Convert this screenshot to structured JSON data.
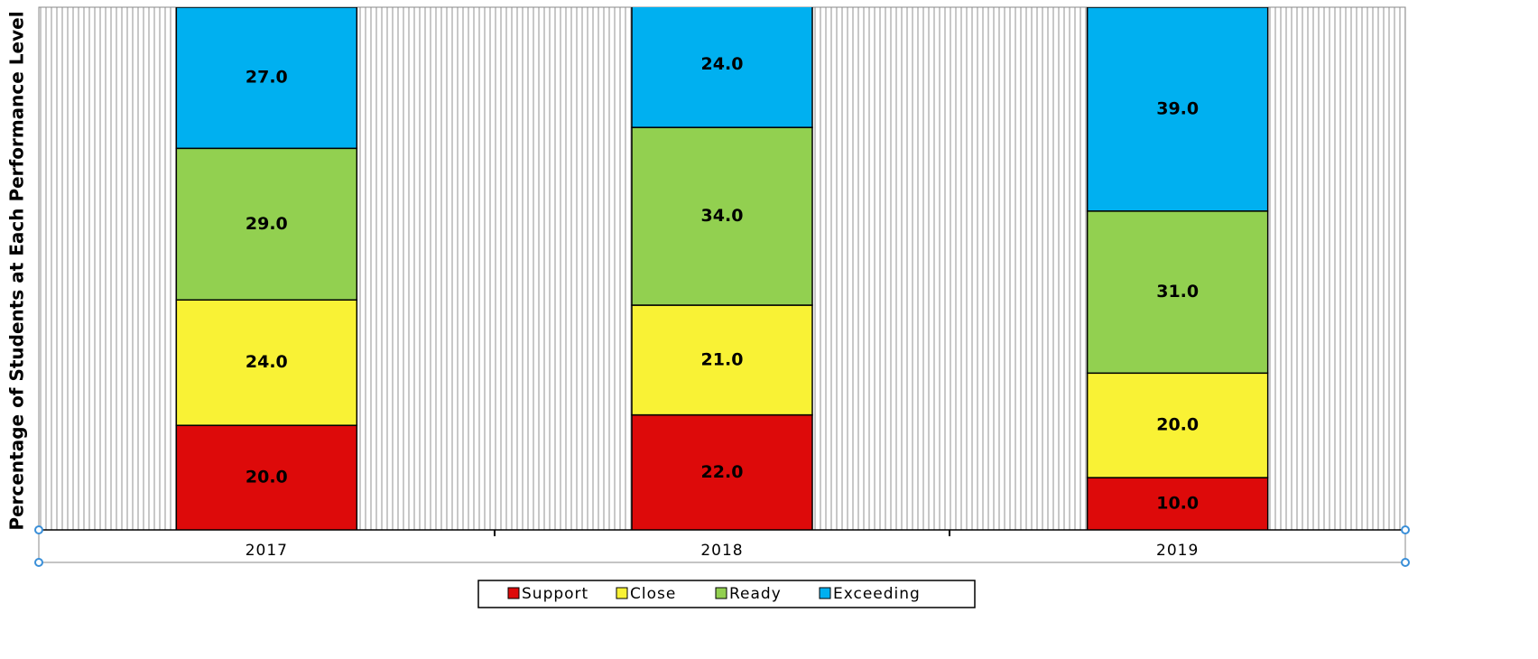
{
  "chart_data": {
    "type": "bar",
    "stacked": true,
    "y_label": "Percentage of Students at Each Performance Level",
    "categories": [
      "2017",
      "2018",
      "2019"
    ],
    "series": [
      {
        "name": "Support",
        "color": "#dd0a0a",
        "values": [
          20,
          22,
          10
        ],
        "value_labels": [
          "20.0",
          "22.0",
          "10.0"
        ]
      },
      {
        "name": "Close",
        "color": "#f9f235",
        "values": [
          24,
          21,
          20
        ],
        "value_labels": [
          "24.0",
          "21.0",
          "20.0"
        ]
      },
      {
        "name": "Ready",
        "color": "#92d050",
        "values": [
          29,
          34,
          31
        ],
        "value_labels": [
          "29.0",
          "34.0",
          "31.0"
        ]
      },
      {
        "name": "Exceeding",
        "color": "#00b0f0",
        "values": [
          27,
          24,
          39
        ],
        "value_labels": [
          "27.0",
          "24.0",
          "39.0"
        ]
      }
    ],
    "ylim": [
      0,
      100
    ]
  }
}
